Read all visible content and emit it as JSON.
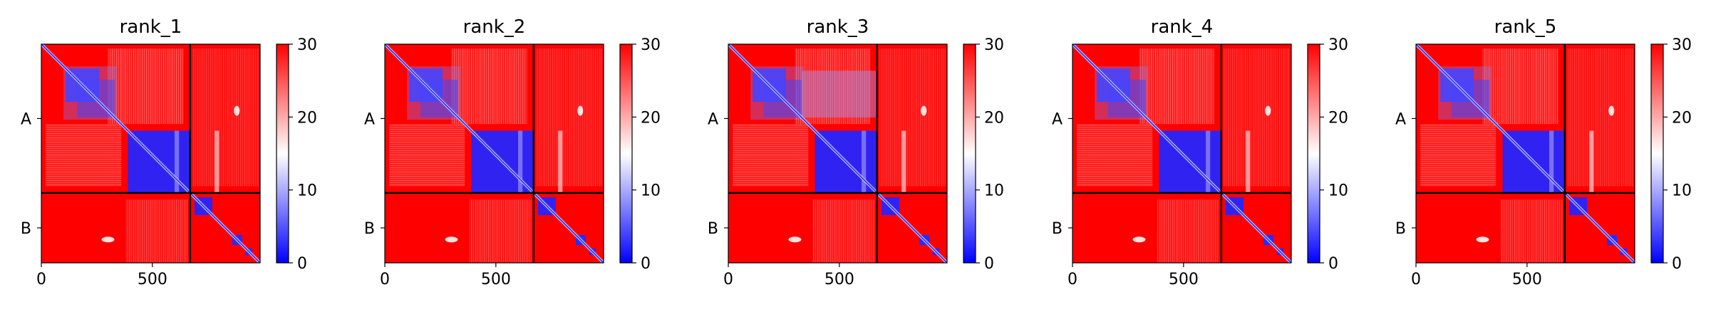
{
  "figure": {
    "background": "#ffffff"
  },
  "chart_data": [
    {
      "type": "heatmap",
      "title": "rank_1",
      "xlabel": "",
      "ylabel": "",
      "x_ticks": [
        0,
        500
      ],
      "xlim": [
        0,
        985
      ],
      "ylim": [
        0,
        985
      ],
      "chain_boundary": 670,
      "chains": [
        "A",
        "B"
      ],
      "colorbar": {
        "min": 0,
        "max": 30,
        "ticks": [
          0,
          10,
          20,
          30
        ],
        "colors": [
          "#0000ff",
          "#ffffff",
          "#ff0000"
        ]
      }
    },
    {
      "type": "heatmap",
      "title": "rank_2",
      "xlabel": "",
      "ylabel": "",
      "x_ticks": [
        0,
        500
      ],
      "xlim": [
        0,
        985
      ],
      "ylim": [
        0,
        985
      ],
      "chain_boundary": 670,
      "chains": [
        "A",
        "B"
      ],
      "colorbar": {
        "min": 0,
        "max": 30,
        "ticks": [
          0,
          10,
          20,
          30
        ],
        "colors": [
          "#0000ff",
          "#ffffff",
          "#ff0000"
        ]
      }
    },
    {
      "type": "heatmap",
      "title": "rank_3",
      "xlabel": "",
      "ylabel": "",
      "x_ticks": [
        0,
        500
      ],
      "xlim": [
        0,
        985
      ],
      "ylim": [
        0,
        985
      ],
      "chain_boundary": 670,
      "chains": [
        "A",
        "B"
      ],
      "colorbar": {
        "min": 0,
        "max": 30,
        "ticks": [
          0,
          10,
          20,
          30
        ],
        "colors": [
          "#0000ff",
          "#ffffff",
          "#ff0000"
        ]
      }
    },
    {
      "type": "heatmap",
      "title": "rank_4",
      "xlabel": "",
      "ylabel": "",
      "x_ticks": [
        0,
        500
      ],
      "xlim": [
        0,
        985
      ],
      "ylim": [
        0,
        985
      ],
      "chain_boundary": 670,
      "chains": [
        "A",
        "B"
      ],
      "colorbar": {
        "min": 0,
        "max": 30,
        "ticks": [
          0,
          10,
          20,
          30
        ],
        "colors": [
          "#0000ff",
          "#ffffff",
          "#ff0000"
        ]
      }
    },
    {
      "type": "heatmap",
      "title": "rank_5",
      "xlabel": "",
      "ylabel": "",
      "x_ticks": [
        0,
        500
      ],
      "xlim": [
        0,
        985
      ],
      "ylim": [
        0,
        985
      ],
      "chain_boundary": 670,
      "chains": [
        "A",
        "B"
      ],
      "colorbar": {
        "min": 0,
        "max": 30,
        "ticks": [
          0,
          10,
          20,
          30
        ],
        "colors": [
          "#0000ff",
          "#ffffff",
          "#ff0000"
        ]
      }
    }
  ]
}
